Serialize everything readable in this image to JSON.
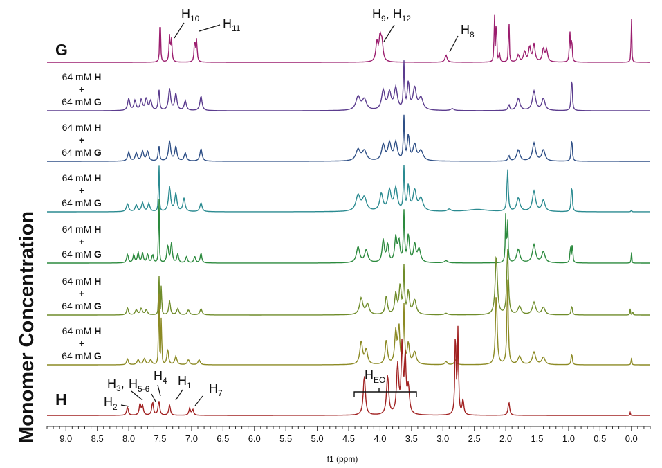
{
  "chart_data": {
    "type": "line",
    "title": "",
    "xlabel": "f1 (ppm)",
    "ylabel": "Monomer Concentration",
    "x_reversed": true,
    "xlim": [
      9.3,
      -0.3
    ],
    "x_ticks": [
      "9.0",
      "8.5",
      "8.0",
      "7.5",
      "7.0",
      "6.5",
      "6.0",
      "5.5",
      "5.0",
      "4.5",
      "4.0",
      "3.5",
      "3.0",
      "2.5",
      "2.0",
      "1.5",
      "1.0",
      "0.5",
      "0.0"
    ],
    "grid": false,
    "mixture_label": {
      "conc": "64 mM",
      "h": "H",
      "plus": "+",
      "g": "G"
    },
    "series": [
      {
        "name": "G",
        "color": "#9b1d6e",
        "peaks": [
          [
            7.5,
            0.95,
            0.007
          ],
          [
            7.35,
            0.45,
            0.01
          ],
          [
            7.32,
            0.4,
            0.01
          ],
          [
            6.95,
            0.38,
            0.01
          ],
          [
            6.92,
            0.38,
            0.01
          ],
          [
            4.05,
            0.32,
            0.02
          ],
          [
            4.0,
            0.38,
            0.02
          ],
          [
            3.97,
            0.3,
            0.02
          ],
          [
            2.95,
            0.12,
            0.02
          ],
          [
            2.18,
            0.95,
            0.006
          ],
          [
            2.15,
            0.95,
            0.006
          ],
          [
            2.1,
            0.15,
            0.01
          ],
          [
            1.95,
            0.95,
            0.006
          ],
          [
            1.8,
            0.12,
            0.02
          ],
          [
            1.7,
            0.18,
            0.02
          ],
          [
            1.62,
            0.25,
            0.02
          ],
          [
            1.55,
            0.3,
            0.02
          ],
          [
            1.4,
            0.22,
            0.02
          ],
          [
            1.35,
            0.2,
            0.02
          ],
          [
            0.98,
            0.55,
            0.008
          ],
          [
            0.95,
            0.45,
            0.008
          ],
          [
            0.0,
            0.95,
            0.005
          ]
        ]
      },
      {
        "name": "64 mM H + 64 mM G (1)",
        "color": "#5b3c8e",
        "peaks": [
          [
            8.0,
            0.25,
            0.02
          ],
          [
            7.9,
            0.2,
            0.02
          ],
          [
            7.8,
            0.22,
            0.02
          ],
          [
            7.72,
            0.25,
            0.02
          ],
          [
            7.65,
            0.2,
            0.02
          ],
          [
            7.52,
            0.45,
            0.012
          ],
          [
            7.35,
            0.45,
            0.02
          ],
          [
            7.25,
            0.35,
            0.02
          ],
          [
            7.1,
            0.2,
            0.02
          ],
          [
            6.85,
            0.3,
            0.02
          ],
          [
            4.35,
            0.28,
            0.04
          ],
          [
            4.25,
            0.22,
            0.04
          ],
          [
            3.95,
            0.4,
            0.03
          ],
          [
            3.85,
            0.35,
            0.03
          ],
          [
            3.75,
            0.45,
            0.03
          ],
          [
            3.62,
            0.95,
            0.01
          ],
          [
            3.55,
            0.55,
            0.02
          ],
          [
            3.45,
            0.45,
            0.03
          ],
          [
            3.35,
            0.25,
            0.04
          ],
          [
            2.85,
            0.04,
            0.03
          ],
          [
            1.95,
            0.12,
            0.015
          ],
          [
            1.8,
            0.25,
            0.03
          ],
          [
            1.55,
            0.4,
            0.03
          ],
          [
            1.4,
            0.25,
            0.03
          ],
          [
            0.95,
            0.75,
            0.01
          ]
        ]
      },
      {
        "name": "64 mM H + 64 mM G (2)",
        "color": "#2e4f86",
        "peaks": [
          [
            8.0,
            0.2,
            0.02
          ],
          [
            7.88,
            0.18,
            0.02
          ],
          [
            7.78,
            0.22,
            0.02
          ],
          [
            7.7,
            0.22,
            0.02
          ],
          [
            7.52,
            0.35,
            0.012
          ],
          [
            7.35,
            0.45,
            0.02
          ],
          [
            7.25,
            0.32,
            0.02
          ],
          [
            7.1,
            0.18,
            0.02
          ],
          [
            6.85,
            0.28,
            0.02
          ],
          [
            4.35,
            0.25,
            0.04
          ],
          [
            4.25,
            0.22,
            0.04
          ],
          [
            3.95,
            0.35,
            0.03
          ],
          [
            3.85,
            0.38,
            0.03
          ],
          [
            3.75,
            0.4,
            0.03
          ],
          [
            3.62,
            0.95,
            0.01
          ],
          [
            3.55,
            0.55,
            0.02
          ],
          [
            3.45,
            0.35,
            0.03
          ],
          [
            3.35,
            0.22,
            0.04
          ],
          [
            1.95,
            0.12,
            0.015
          ],
          [
            1.8,
            0.25,
            0.03
          ],
          [
            1.55,
            0.4,
            0.03
          ],
          [
            1.4,
            0.25,
            0.03
          ],
          [
            0.95,
            0.55,
            0.01
          ]
        ]
      },
      {
        "name": "64 mM H + 64 mM G (3)",
        "color": "#2a8a90",
        "peaks": [
          [
            8.02,
            0.18,
            0.02
          ],
          [
            7.88,
            0.15,
            0.02
          ],
          [
            7.78,
            0.2,
            0.02
          ],
          [
            7.68,
            0.18,
            0.02
          ],
          [
            7.52,
            1.35,
            0.006
          ],
          [
            7.35,
            0.55,
            0.02
          ],
          [
            7.25,
            0.4,
            0.02
          ],
          [
            7.12,
            0.3,
            0.02
          ],
          [
            6.85,
            0.2,
            0.02
          ],
          [
            4.35,
            0.35,
            0.04
          ],
          [
            4.25,
            0.3,
            0.04
          ],
          [
            3.98,
            0.38,
            0.03
          ],
          [
            3.85,
            0.45,
            0.03
          ],
          [
            3.75,
            0.5,
            0.03
          ],
          [
            3.62,
            0.95,
            0.01
          ],
          [
            3.55,
            0.55,
            0.02
          ],
          [
            3.45,
            0.45,
            0.03
          ],
          [
            3.35,
            0.28,
            0.04
          ],
          [
            2.9,
            0.05,
            0.03
          ],
          [
            2.45,
            0.05,
            0.2
          ],
          [
            1.97,
            0.95,
            0.012
          ],
          [
            1.8,
            0.3,
            0.03
          ],
          [
            1.55,
            0.45,
            0.03
          ],
          [
            1.4,
            0.25,
            0.03
          ],
          [
            0.95,
            0.65,
            0.01
          ],
          [
            0.0,
            0.04,
            0.006
          ]
        ]
      },
      {
        "name": "64 mM H + 64 mM G (4)",
        "color": "#2c8a3e",
        "peaks": [
          [
            8.02,
            0.2,
            0.015
          ],
          [
            7.92,
            0.18,
            0.015
          ],
          [
            7.85,
            0.22,
            0.015
          ],
          [
            7.78,
            0.22,
            0.015
          ],
          [
            7.7,
            0.2,
            0.015
          ],
          [
            7.62,
            0.18,
            0.015
          ],
          [
            7.52,
            2.1,
            0.005
          ],
          [
            7.38,
            0.4,
            0.015
          ],
          [
            7.32,
            0.45,
            0.015
          ],
          [
            7.22,
            0.2,
            0.015
          ],
          [
            7.08,
            0.15,
            0.015
          ],
          [
            6.95,
            0.15,
            0.015
          ],
          [
            6.85,
            0.22,
            0.015
          ],
          [
            4.35,
            0.35,
            0.03
          ],
          [
            4.22,
            0.28,
            0.03
          ],
          [
            3.95,
            0.5,
            0.02
          ],
          [
            3.88,
            0.4,
            0.02
          ],
          [
            3.75,
            0.55,
            0.02
          ],
          [
            3.7,
            0.45,
            0.02
          ],
          [
            3.62,
            1.1,
            0.01
          ],
          [
            3.55,
            0.6,
            0.02
          ],
          [
            3.45,
            0.4,
            0.02
          ],
          [
            3.38,
            0.3,
            0.03
          ],
          [
            2.95,
            0.05,
            0.03
          ],
          [
            2.0,
            1.05,
            0.008
          ],
          [
            1.97,
            0.95,
            0.008
          ],
          [
            1.8,
            0.3,
            0.03
          ],
          [
            1.55,
            0.4,
            0.03
          ],
          [
            1.4,
            0.25,
            0.03
          ],
          [
            0.97,
            0.4,
            0.008
          ],
          [
            0.94,
            0.45,
            0.008
          ],
          [
            0.0,
            0.35,
            0.004
          ]
        ]
      },
      {
        "name": "64 mM H + 64 mM G (5)",
        "color": "#6f8c2a",
        "peaks": [
          [
            8.02,
            0.18,
            0.015
          ],
          [
            7.88,
            0.12,
            0.02
          ],
          [
            7.8,
            0.15,
            0.02
          ],
          [
            7.72,
            0.12,
            0.02
          ],
          [
            7.52,
            1.35,
            0.005
          ],
          [
            7.48,
            1.0,
            0.005
          ],
          [
            7.35,
            0.35,
            0.015
          ],
          [
            7.22,
            0.15,
            0.02
          ],
          [
            7.05,
            0.12,
            0.02
          ],
          [
            6.85,
            0.15,
            0.02
          ],
          [
            4.3,
            0.4,
            0.03
          ],
          [
            4.2,
            0.25,
            0.03
          ],
          [
            3.9,
            0.45,
            0.02
          ],
          [
            3.75,
            0.5,
            0.02
          ],
          [
            3.68,
            0.7,
            0.02
          ],
          [
            3.62,
            1.1,
            0.01
          ],
          [
            3.55,
            0.55,
            0.02
          ],
          [
            3.45,
            0.35,
            0.03
          ],
          [
            2.95,
            0.04,
            0.03
          ],
          [
            2.15,
            1.45,
            0.02
          ],
          [
            1.97,
            1.6,
            0.015
          ],
          [
            1.78,
            0.2,
            0.03
          ],
          [
            1.55,
            0.3,
            0.03
          ],
          [
            1.4,
            0.18,
            0.03
          ],
          [
            0.95,
            0.25,
            0.01
          ],
          [
            0.02,
            0.15,
            0.005
          ],
          [
            -0.02,
            0.12,
            0.005
          ]
        ]
      },
      {
        "name": "64 mM H + 64 mM G (6)",
        "color": "#8c8a24",
        "peaks": [
          [
            8.02,
            0.15,
            0.015
          ],
          [
            7.85,
            0.12,
            0.02
          ],
          [
            7.75,
            0.15,
            0.02
          ],
          [
            7.65,
            0.12,
            0.02
          ],
          [
            7.52,
            2.5,
            0.005
          ],
          [
            7.48,
            1.6,
            0.005
          ],
          [
            7.38,
            0.38,
            0.015
          ],
          [
            7.25,
            0.2,
            0.02
          ],
          [
            7.05,
            0.12,
            0.02
          ],
          [
            6.88,
            0.12,
            0.02
          ],
          [
            4.3,
            0.55,
            0.025
          ],
          [
            4.22,
            0.35,
            0.025
          ],
          [
            3.9,
            0.6,
            0.02
          ],
          [
            3.75,
            0.8,
            0.02
          ],
          [
            3.7,
            0.9,
            0.015
          ],
          [
            3.62,
            1.4,
            0.01
          ],
          [
            3.55,
            0.5,
            0.02
          ],
          [
            3.45,
            0.3,
            0.03
          ],
          [
            2.95,
            0.08,
            0.02
          ],
          [
            2.8,
            0.12,
            0.02
          ],
          [
            2.15,
            1.8,
            0.015
          ],
          [
            1.97,
            2.1,
            0.012
          ],
          [
            1.78,
            0.2,
            0.03
          ],
          [
            1.55,
            0.3,
            0.03
          ],
          [
            1.4,
            0.18,
            0.03
          ],
          [
            0.95,
            0.3,
            0.01
          ],
          [
            0.0,
            0.22,
            0.005
          ]
        ]
      },
      {
        "name": "H",
        "color": "#a02020",
        "peaks": [
          [
            8.02,
            0.22,
            0.015
          ],
          [
            7.82,
            0.3,
            0.015
          ],
          [
            7.78,
            0.25,
            0.015
          ],
          [
            7.62,
            0.35,
            0.015
          ],
          [
            7.52,
            0.38,
            0.015
          ],
          [
            7.35,
            0.28,
            0.015
          ],
          [
            7.03,
            0.18,
            0.015
          ],
          [
            6.98,
            0.15,
            0.015
          ],
          [
            4.25,
            1.05,
            0.02
          ],
          [
            3.88,
            1.05,
            0.02
          ],
          [
            3.72,
            1.3,
            0.02
          ],
          [
            3.65,
            1.8,
            0.015
          ],
          [
            3.6,
            1.5,
            0.015
          ],
          [
            3.55,
            0.7,
            0.02
          ],
          [
            2.8,
            2.3,
            0.01
          ],
          [
            2.76,
            2.2,
            0.01
          ],
          [
            2.68,
            0.4,
            0.015
          ],
          [
            1.95,
            0.35,
            0.015
          ],
          [
            0.02,
            0.08,
            0.005
          ]
        ]
      }
    ],
    "peak_labels": {
      "G": [
        "H10",
        "H11",
        "H9, H12",
        "H8"
      ],
      "H": [
        "H2",
        "H3,",
        "H5-6",
        "H4",
        "H1",
        "H7",
        "HEO"
      ]
    }
  }
}
